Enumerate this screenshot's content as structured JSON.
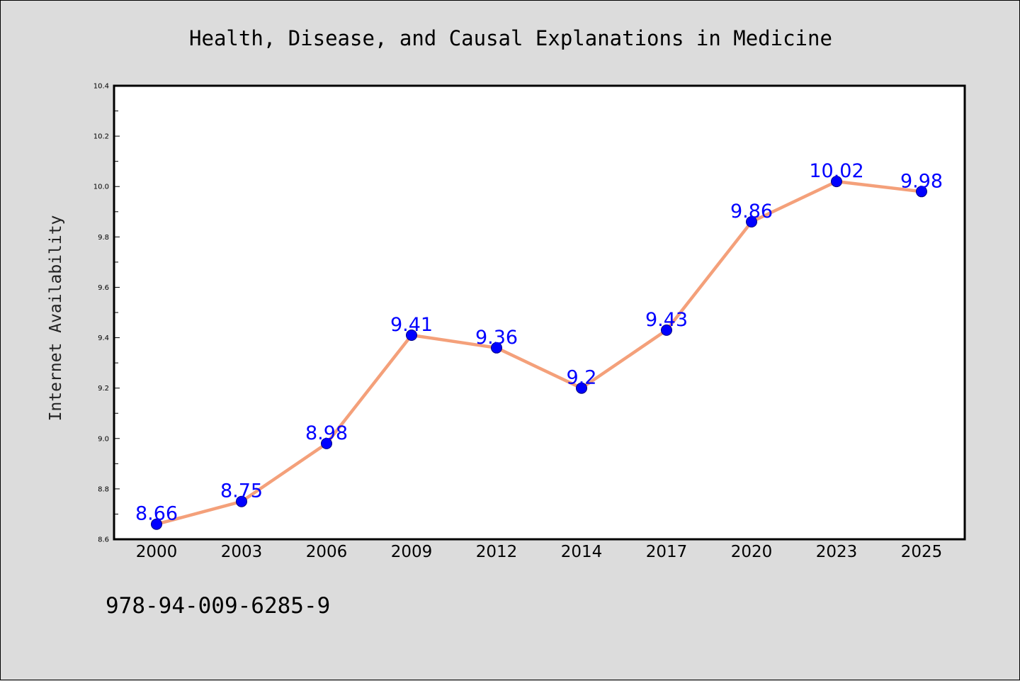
{
  "chart_data": {
    "type": "line",
    "title": "Health, Disease, and Causal Explanations in Medicine",
    "xlabel": "",
    "ylabel": "Internet Availability",
    "categories": [
      "2000",
      "2003",
      "2006",
      "2009",
      "2012",
      "2014",
      "2017",
      "2020",
      "2023",
      "2025"
    ],
    "series": [
      {
        "values": [
          8.66,
          8.75,
          8.98,
          9.41,
          9.36,
          9.2,
          9.43,
          9.86,
          10.02,
          9.98
        ]
      }
    ],
    "data_labels": [
      "8.66",
      "8.75",
      "8.98",
      "9.41",
      "9.36",
      "9.2",
      "9.43",
      "9.86",
      "10.02",
      "9.98"
    ],
    "ylim": [
      8.6,
      10.4
    ],
    "y_ticks": [
      "8.6",
      "8.8",
      "9.0",
      "9.2",
      "9.4",
      "9.6",
      "9.8",
      "10.0",
      "10.2",
      "10.4"
    ],
    "grid": false,
    "legend": "none",
    "colors": {
      "line": "#f4a07a",
      "marker": "#0000ff",
      "marker_edge": "#000080",
      "data_label": "#0000ff",
      "background": "#dcdcdc",
      "plot_background": "#ffffff"
    }
  },
  "footer": {
    "isbn": "978-94-009-6285-9"
  }
}
